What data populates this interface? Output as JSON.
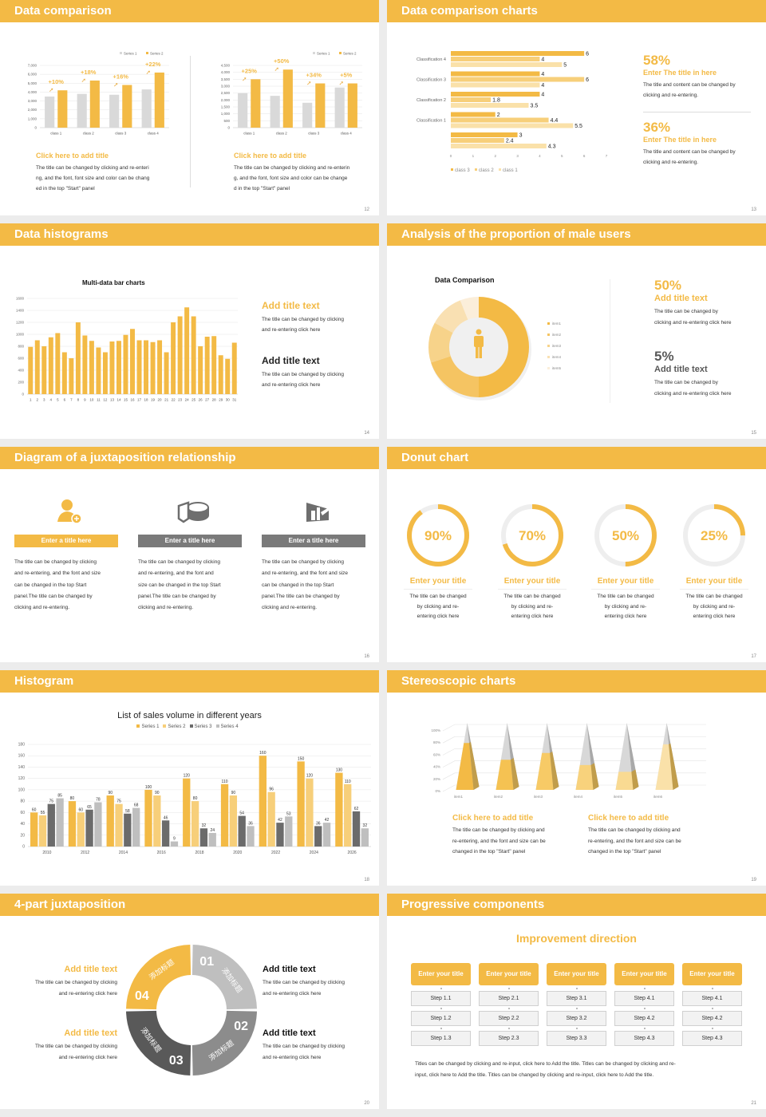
{
  "colors": {
    "accent": "#F3BA45",
    "accent_light": "#F7CF7A",
    "accent_pale": "#FAE1A9",
    "gray": "#D9D9D9",
    "dark_gray": "#595959",
    "mid_gray": "#8C8C8C"
  },
  "slide12": {
    "header": "Data comparison",
    "page": "12",
    "left": {
      "title": "Click here to add title",
      "lines": [
        "The title can be changed by clicking and re-enteri",
        "ng, and the font, font size and color can be chang",
        "ed in the top \"Start\" panel"
      ]
    },
    "right": {
      "title": "Click here to add title",
      "lines": [
        "The title can be changed by clicking and re-enterin",
        "g, and the font, font size and color can be change",
        "d in the top \"Start\" panel"
      ]
    }
  },
  "slide13": {
    "header": "Data comparison charts",
    "page": "13",
    "items": [
      {
        "pct": "58%",
        "title": "Enter The title in here",
        "lines": [
          "The title and content can be changed by",
          "clicking and re-entering."
        ]
      },
      {
        "pct": "36%",
        "title": "Enter The title in here",
        "lines": [
          "The title and content can be changed by",
          "clicking and re-entering."
        ]
      }
    ]
  },
  "slide14": {
    "header": "Data histograms",
    "page": "14",
    "chart_title": "Multi-data bar charts",
    "items": [
      {
        "title": "Add title text",
        "lines": [
          "The title can be changed by clicking",
          "and re-entering click here"
        ]
      },
      {
        "title": "Add title text",
        "lines": [
          "The title can be changed by clicking",
          "and re-entering click here"
        ]
      }
    ]
  },
  "slide15": {
    "header": "Analysis of the proportion of male users",
    "page": "15",
    "chart_title": "Data Comparison",
    "icon": "person-icon",
    "items": [
      {
        "pct": "50%",
        "title": "Add title text",
        "lines": [
          "The title can be changed by",
          "clicking and re-entering click here"
        ]
      },
      {
        "pct": "5%",
        "title": "Add title text",
        "lines": [
          "The title can be changed by",
          "clicking and re-entering click here"
        ]
      }
    ]
  },
  "slide16": {
    "header": "Diagram of a juxtaposition relationship",
    "page": "16",
    "columns": [
      {
        "icon": "user-add-icon",
        "title": "Enter a title here",
        "lines": [
          "The title can be changed by clicking",
          "and re-entering, and the font and size",
          "can be changed in the top Start",
          "panel.The title can be changed by",
          "clicking and re-entering."
        ]
      },
      {
        "icon": "pie-chart-icon",
        "title": "Enter a title here",
        "lines": [
          "The title can be changed by clicking",
          "and re-entering, and the font and",
          "size can be changed in the top Start",
          "panel.The title can be changed by",
          "clicking and re-entering."
        ]
      },
      {
        "icon": "building-chart-icon",
        "title": "Enter a title here",
        "lines": [
          "The title can be changed by clicking",
          "and re-entering, and the font and size",
          "can be changed in the top Start",
          "panel.The title can be changed by",
          "clicking and re-entering."
        ]
      }
    ]
  },
  "slide17": {
    "header": "Donut chart",
    "page": "17",
    "rings": [
      {
        "value": 90,
        "label": "90%",
        "title": "Enter your title",
        "lines": [
          "The title can be changed",
          "by clicking and re-",
          "entering click here"
        ]
      },
      {
        "value": 70,
        "label": "70%",
        "title": "Enter your title",
        "lines": [
          "The title can be changed",
          "by clicking and re-",
          "entering click here"
        ]
      },
      {
        "value": 50,
        "label": "50%",
        "title": "Enter your title",
        "lines": [
          "The title can be changed",
          "by clicking and re-",
          "entering click here"
        ]
      },
      {
        "value": 25,
        "label": "25%",
        "title": "Enter your title",
        "lines": [
          "The title can be changed",
          "by clicking and re-",
          "entering click here"
        ]
      }
    ]
  },
  "slide18": {
    "header": "Histogram",
    "page": "18"
  },
  "slide19": {
    "header": "Stereoscopic charts",
    "page": "19",
    "items": [
      {
        "title": "Click here to add title",
        "lines": [
          "The title can be changed by clicking and",
          "re-entering, and the font and size can be",
          "changed in the top \"Start\" panel"
        ]
      },
      {
        "title": "Click here to add title",
        "lines": [
          "The title can be changed by clicking and",
          "re-entering, and the font and size can be",
          "changed in the top \"Start\" panel"
        ]
      }
    ]
  },
  "slide20": {
    "header": "4-part juxtaposition",
    "page": "20",
    "segments": [
      {
        "num": "01",
        "label": "添加标题"
      },
      {
        "num": "02",
        "label": "添加标题"
      },
      {
        "num": "03",
        "label": "添加标题"
      },
      {
        "num": "04",
        "label": "添加标题"
      }
    ],
    "left": [
      {
        "title": "Add title text",
        "lines": [
          "The title can be changed by clicking",
          "and re-entering click here"
        ]
      },
      {
        "title": "Add title text",
        "lines": [
          "The title can be changed by clicking",
          "and re-entering click here"
        ]
      }
    ],
    "right": [
      {
        "title": "Add title text",
        "lines": [
          "The title can be changed by clicking",
          "and re-entering click here"
        ]
      },
      {
        "title": "Add title text",
        "lines": [
          "The title can be changed by clicking",
          "and re-entering click here"
        ]
      }
    ]
  },
  "slide21": {
    "header": "Progressive components",
    "page": "21",
    "title": "Improvement direction",
    "columns": [
      {
        "title": "Enter your title",
        "steps": [
          "Step 1.1",
          "Step 1.2",
          "Step 1.3"
        ]
      },
      {
        "title": "Enter your title",
        "steps": [
          "Step 2.1",
          "Step 2.2",
          "Step 2.3"
        ]
      },
      {
        "title": "Enter your title",
        "steps": [
          "Step 3.1",
          "Step 3.2",
          "Step 3.3"
        ]
      },
      {
        "title": "Enter your title",
        "steps": [
          "Step 4.1",
          "Step 4.2",
          "Step 4.3"
        ]
      },
      {
        "title": "Enter your title",
        "steps": [
          "Step 4.1",
          "Step 4.2",
          "Step 4.3"
        ]
      }
    ],
    "lines": [
      "Titles can be changed by clicking and re-input, click here to Add the title. Titles can be changed by clicking and re-",
      "input, click here to Add the title. Titles can be changed by clicking and re-input, click here to Add the title."
    ]
  },
  "chart_data": [
    {
      "type": "bar",
      "categories": [
        "class 1",
        "class 2",
        "class 3",
        "class 4"
      ],
      "ylim": [
        0,
        7000
      ],
      "ystep": 1000,
      "series": [
        {
          "name": "Series 1",
          "values": [
            3500,
            3800,
            3700,
            4300
          ],
          "color": "#D9D9D9"
        },
        {
          "name": "Series 2",
          "values": [
            4200,
            5300,
            4800,
            6200
          ],
          "color": "#F3BA45"
        }
      ],
      "annotations": [
        "+10%",
        "+18%",
        "+16%",
        "+22%"
      ],
      "legend": "top-right",
      "grid": true
    },
    {
      "type": "bar",
      "categories": [
        "class 1",
        "class 2",
        "class 3",
        "class 4"
      ],
      "ylim": [
        0,
        4500
      ],
      "ystep": 500,
      "series": [
        {
          "name": "Series 1",
          "values": [
            2500,
            2300,
            1800,
            2900
          ],
          "color": "#D9D9D9"
        },
        {
          "name": "Series 2",
          "values": [
            3500,
            4200,
            3200,
            3200
          ],
          "color": "#F3BA45"
        }
      ],
      "annotations": [
        "+25%",
        "+50%",
        "+34%",
        "+5%"
      ],
      "legend": "top-right",
      "grid": true
    },
    {
      "type": "bar",
      "orientation": "horizontal",
      "categories": [
        "Classification 4",
        "Classification 3",
        "Classification 2",
        "Classification 1",
        ""
      ],
      "xlim": [
        0,
        7
      ],
      "series": [
        {
          "name": "class 3",
          "values": [
            6,
            4,
            4,
            2,
            3
          ],
          "color": "#F3BA45"
        },
        {
          "name": "class 2",
          "values": [
            4,
            6,
            1.8,
            4.4,
            2.4
          ],
          "color": "#F7CF7A"
        },
        {
          "name": "class 1",
          "values": [
            5,
            4,
            3.5,
            5.5,
            4.3
          ],
          "color": "#FAE1A9"
        }
      ],
      "legend": "bottom"
    },
    {
      "type": "bar",
      "title": "Multi-data bar charts",
      "categories": [
        "1",
        "2",
        "3",
        "4",
        "5",
        "6",
        "7",
        "8",
        "9",
        "10",
        "11",
        "12",
        "13",
        "14",
        "15",
        "16",
        "17",
        "18",
        "19",
        "20",
        "21",
        "22",
        "23",
        "24",
        "25",
        "26",
        "27",
        "28",
        "29",
        "30",
        "31"
      ],
      "ylim": [
        0,
        1600
      ],
      "ystep": 200,
      "values": [
        790,
        900,
        800,
        950,
        1020,
        700,
        600,
        1200,
        980,
        890,
        780,
        700,
        880,
        890,
        990,
        1090,
        900,
        900,
        870,
        900,
        700,
        1200,
        1300,
        1450,
        1300,
        800,
        960,
        970,
        650,
        590,
        860
      ],
      "grid": true
    },
    {
      "type": "pie",
      "donut": true,
      "title": "Data Comparison",
      "labels": [
        "item1",
        "item2",
        "item3",
        "item4",
        "item5"
      ],
      "values": [
        50,
        20,
        13,
        11,
        6
      ],
      "colors": [
        "#F3BA45",
        "#F5C462",
        "#F7D38A",
        "#F9E0B2",
        "#FBEEDA"
      ],
      "legend": "right"
    },
    {
      "type": "bar",
      "title": "List of sales volume in different years",
      "categories": [
        "2010",
        "2012",
        "2014",
        "2016",
        "2018",
        "2020",
        "2022",
        "2024",
        "2026"
      ],
      "ylim": [
        0,
        180
      ],
      "ystep": 20,
      "series": [
        {
          "name": "Series 1",
          "values": [
            60,
            80,
            90,
            100,
            120,
            110,
            160,
            150,
            130
          ],
          "color": "#F3BA45"
        },
        {
          "name": "Series 2",
          "values": [
            55,
            60,
            75,
            90,
            80,
            90,
            96,
            120,
            110
          ],
          "color": "#F7CF7A"
        },
        {
          "name": "Series 3",
          "values": [
            75,
            65,
            58,
            46,
            32,
            54,
            42,
            36,
            62
          ],
          "color": "#6B6B6B"
        },
        {
          "name": "Series 4",
          "values": [
            85,
            78,
            68,
            9,
            24,
            36,
            53,
            42,
            32
          ],
          "color": "#BFBFBF"
        }
      ],
      "legend": "top",
      "grid": true,
      "data_labels": true
    },
    {
      "type": "bar",
      "style": "3d-pyramid",
      "categories": [
        "item1",
        "item2",
        "item3",
        "item4",
        "item5",
        "item6"
      ],
      "ylim": [
        0,
        100
      ],
      "ystep": 20,
      "unit": "%",
      "values": [
        70,
        45,
        55,
        37,
        27,
        68
      ],
      "grid": true
    }
  ]
}
